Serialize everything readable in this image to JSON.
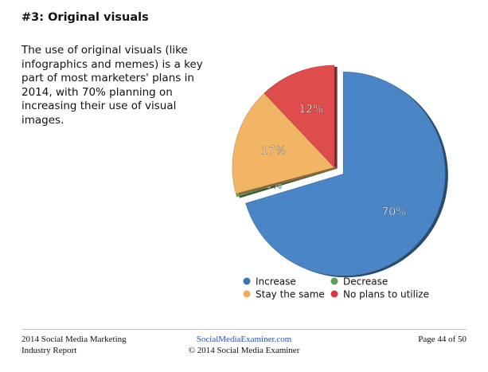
{
  "heading": "#3: Original visuals",
  "body": "The use of original visuals (like infographics and memes) is a key part of most marketers' plans in 2014, with 70% planning on increasing their use of visual images.",
  "chart_data": {
    "type": "pie",
    "title": "",
    "legend_position": "bottom",
    "slices": [
      {
        "label": "Increase",
        "value": 70,
        "display": "70%",
        "color": "#4a86c6"
      },
      {
        "label": "Decrease",
        "value": 0.5,
        "display": "0%",
        "color": "#6aa86a"
      },
      {
        "label": "Stay the same",
        "value": 17,
        "display": "17%",
        "color": "#f2b566"
      },
      {
        "label": "No plans to utilize",
        "value": 12,
        "display": "12%",
        "color": "#de4c4c"
      }
    ],
    "exploded": "Increase"
  },
  "legend": [
    {
      "label": "Increase",
      "color": "#3b75b7"
    },
    {
      "label": "Decrease",
      "color": "#5e9e5e"
    },
    {
      "label": "Stay the same",
      "color": "#efaa55"
    },
    {
      "label": "No plans to utilize",
      "color": "#d83a3a"
    }
  ],
  "footer": {
    "left_line1": "2014 Social Media Marketing",
    "left_line2": "Industry Report",
    "center_link": "SocialMediaExaminer.com",
    "center_copyright": "© 2014 Social Media Examiner",
    "page": "Page 44 of 50"
  }
}
